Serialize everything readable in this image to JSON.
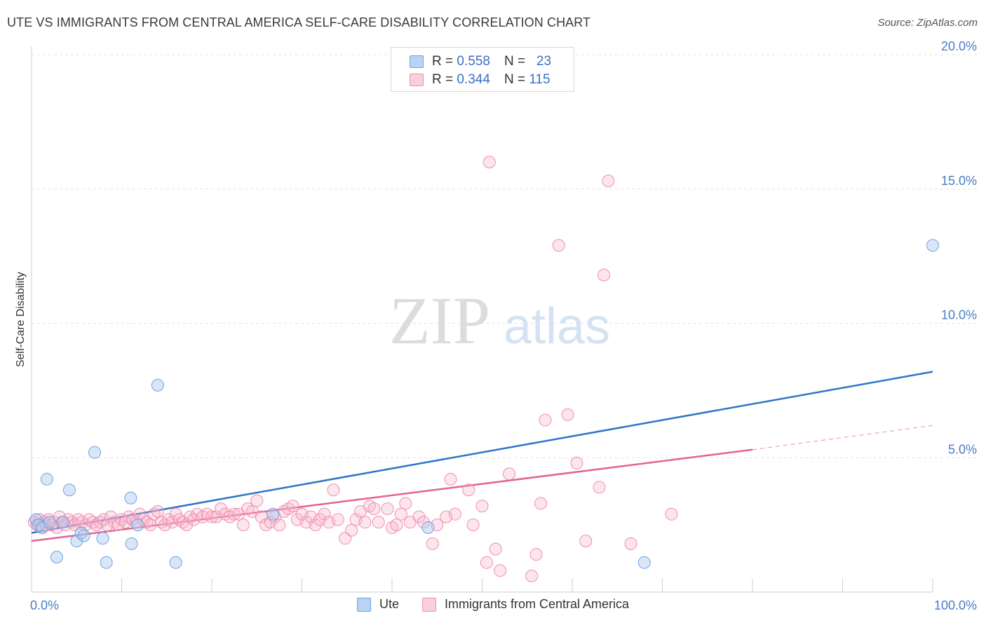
{
  "header": {
    "title": "UTE VS IMMIGRANTS FROM CENTRAL AMERICA SELF-CARE DISABILITY CORRELATION CHART",
    "source": "Source: ZipAtlas.com"
  },
  "watermark": {
    "zip": "ZIP",
    "atlas": "atlas"
  },
  "legend_top": {
    "rows": [
      {
        "r_label": "R =",
        "r_value": "0.558",
        "n_label": "N =",
        "n_value": "23",
        "color": "#6fa3e0"
      },
      {
        "r_label": "R =",
        "r_value": "0.344",
        "n_label": "N =",
        "n_value": "115",
        "color": "#ef8fb0"
      }
    ]
  },
  "legend_bottom": {
    "items": [
      {
        "label": "Ute",
        "color": "#6fa3e0"
      },
      {
        "label": "Immigrants from Central America",
        "color": "#ef8fb0"
      }
    ]
  },
  "chart_data": {
    "type": "scatter",
    "title": "UTE VS IMMIGRANTS FROM CENTRAL AMERICA SELF-CARE DISABILITY CORRELATION CHART",
    "xlabel": "",
    "ylabel": "Self-Care Disability",
    "xlim": [
      0,
      100
    ],
    "ylim": [
      0,
      20
    ],
    "x_tick_labels": [
      "0.0%",
      "100.0%"
    ],
    "y_ticks": [
      5,
      10,
      15,
      20
    ],
    "y_tick_labels": [
      "5.0%",
      "10.0%",
      "15.0%",
      "20.0%"
    ],
    "grid": true,
    "legend_position": "top-center",
    "colors": {
      "ute": "#6fa3e0",
      "ute_line": "#2f74c9",
      "cam": "#ef8fb0",
      "cam_line": "#e36292"
    },
    "series": [
      {
        "name": "Ute",
        "r": 0.558,
        "n": 23,
        "trend": {
          "x": [
            0,
            100
          ],
          "y": [
            2.2,
            8.2
          ]
        },
        "points": [
          [
            0.5,
            2.7
          ],
          [
            0.8,
            2.5
          ],
          [
            1.2,
            2.4
          ],
          [
            1.7,
            4.2
          ],
          [
            2.8,
            1.3
          ],
          [
            3.5,
            2.6
          ],
          [
            4.2,
            3.8
          ],
          [
            5.0,
            1.9
          ],
          [
            5.5,
            2.2
          ],
          [
            5.8,
            2.1
          ],
          [
            7.0,
            5.2
          ],
          [
            7.9,
            2.0
          ],
          [
            8.3,
            1.1
          ],
          [
            11.1,
            1.8
          ],
          [
            11.0,
            3.5
          ],
          [
            11.8,
            2.5
          ],
          [
            14.0,
            7.7
          ],
          [
            16.0,
            1.1
          ],
          [
            26.8,
            2.9
          ],
          [
            44.0,
            2.4
          ],
          [
            68.0,
            1.1
          ],
          [
            100.0,
            12.9
          ],
          [
            2.0,
            2.6
          ]
        ]
      },
      {
        "name": "Immigrants from Central America",
        "r": 0.344,
        "n": 115,
        "trend": {
          "x": [
            0,
            80
          ],
          "y": [
            1.9,
            5.3
          ]
        },
        "trend_dashed": {
          "x": [
            80,
            100
          ],
          "y": [
            5.3,
            6.2
          ]
        },
        "points": [
          [
            0.3,
            2.6
          ],
          [
            0.6,
            2.5
          ],
          [
            0.9,
            2.7
          ],
          [
            1.1,
            2.4
          ],
          [
            1.4,
            2.6
          ],
          [
            1.6,
            2.5
          ],
          [
            1.9,
            2.7
          ],
          [
            2.2,
            2.5
          ],
          [
            2.5,
            2.6
          ],
          [
            2.8,
            2.4
          ],
          [
            3.1,
            2.8
          ],
          [
            3.4,
            2.6
          ],
          [
            3.7,
            2.5
          ],
          [
            4.1,
            2.7
          ],
          [
            4.5,
            2.6
          ],
          [
            4.8,
            2.5
          ],
          [
            5.2,
            2.7
          ],
          [
            5.6,
            2.6
          ],
          [
            6.0,
            2.5
          ],
          [
            6.4,
            2.7
          ],
          [
            6.8,
            2.6
          ],
          [
            7.2,
            2.5
          ],
          [
            7.6,
            2.6
          ],
          [
            8.0,
            2.7
          ],
          [
            8.4,
            2.5
          ],
          [
            8.8,
            2.8
          ],
          [
            9.2,
            2.6
          ],
          [
            9.6,
            2.5
          ],
          [
            10.0,
            2.7
          ],
          [
            10.4,
            2.6
          ],
          [
            10.8,
            2.8
          ],
          [
            11.2,
            2.7
          ],
          [
            11.6,
            2.6
          ],
          [
            12.0,
            2.9
          ],
          [
            12.4,
            2.7
          ],
          [
            12.8,
            2.6
          ],
          [
            13.2,
            2.5
          ],
          [
            13.6,
            2.9
          ],
          [
            14.0,
            3.0
          ],
          [
            14.4,
            2.6
          ],
          [
            14.8,
            2.5
          ],
          [
            15.2,
            2.7
          ],
          [
            15.6,
            2.6
          ],
          [
            16.0,
            2.9
          ],
          [
            16.4,
            2.7
          ],
          [
            16.8,
            2.6
          ],
          [
            17.2,
            2.5
          ],
          [
            17.6,
            2.8
          ],
          [
            18.0,
            2.7
          ],
          [
            18.4,
            2.9
          ],
          [
            19.0,
            2.8
          ],
          [
            19.5,
            2.9
          ],
          [
            20.0,
            2.8
          ],
          [
            20.5,
            2.8
          ],
          [
            21.0,
            3.1
          ],
          [
            21.5,
            2.9
          ],
          [
            22.0,
            2.8
          ],
          [
            22.5,
            2.9
          ],
          [
            23.0,
            2.9
          ],
          [
            23.5,
            2.5
          ],
          [
            24.0,
            3.1
          ],
          [
            24.5,
            3.0
          ],
          [
            25.0,
            3.4
          ],
          [
            25.5,
            2.8
          ],
          [
            26.0,
            2.5
          ],
          [
            26.5,
            2.6
          ],
          [
            27.0,
            2.8
          ],
          [
            27.5,
            2.5
          ],
          [
            28.0,
            3.0
          ],
          [
            28.5,
            3.1
          ],
          [
            29.0,
            3.2
          ],
          [
            29.5,
            2.7
          ],
          [
            30.0,
            2.9
          ],
          [
            30.5,
            2.6
          ],
          [
            31.0,
            2.8
          ],
          [
            31.5,
            2.5
          ],
          [
            32.0,
            2.7
          ],
          [
            32.5,
            2.9
          ],
          [
            33.0,
            2.6
          ],
          [
            33.5,
            3.8
          ],
          [
            34.0,
            2.7
          ],
          [
            34.8,
            2.0
          ],
          [
            35.5,
            2.3
          ],
          [
            36.0,
            2.7
          ],
          [
            36.5,
            3.0
          ],
          [
            37.0,
            2.6
          ],
          [
            37.5,
            3.2
          ],
          [
            38.0,
            3.1
          ],
          [
            38.5,
            2.6
          ],
          [
            39.5,
            3.1
          ],
          [
            40.0,
            2.4
          ],
          [
            40.5,
            2.5
          ],
          [
            41.0,
            2.9
          ],
          [
            41.5,
            3.3
          ],
          [
            42.0,
            2.6
          ],
          [
            43.0,
            2.8
          ],
          [
            43.5,
            2.6
          ],
          [
            44.5,
            1.8
          ],
          [
            45.0,
            2.5
          ],
          [
            46.0,
            2.8
          ],
          [
            46.5,
            4.2
          ],
          [
            47.0,
            2.9
          ],
          [
            48.5,
            3.8
          ],
          [
            49.0,
            2.5
          ],
          [
            50.0,
            3.2
          ],
          [
            50.5,
            1.1
          ],
          [
            51.5,
            1.6
          ],
          [
            52.0,
            0.8
          ],
          [
            53.0,
            4.4
          ],
          [
            55.5,
            0.6
          ],
          [
            56.0,
            1.4
          ],
          [
            56.5,
            3.3
          ],
          [
            57.0,
            6.4
          ],
          [
            58.5,
            12.9
          ],
          [
            59.5,
            6.6
          ],
          [
            60.5,
            4.8
          ],
          [
            61.5,
            1.9
          ],
          [
            63.0,
            3.9
          ],
          [
            63.5,
            11.8
          ],
          [
            64.0,
            15.3
          ],
          [
            66.5,
            1.8
          ],
          [
            71.0,
            2.9
          ],
          [
            50.8,
            16.0
          ]
        ]
      }
    ]
  }
}
